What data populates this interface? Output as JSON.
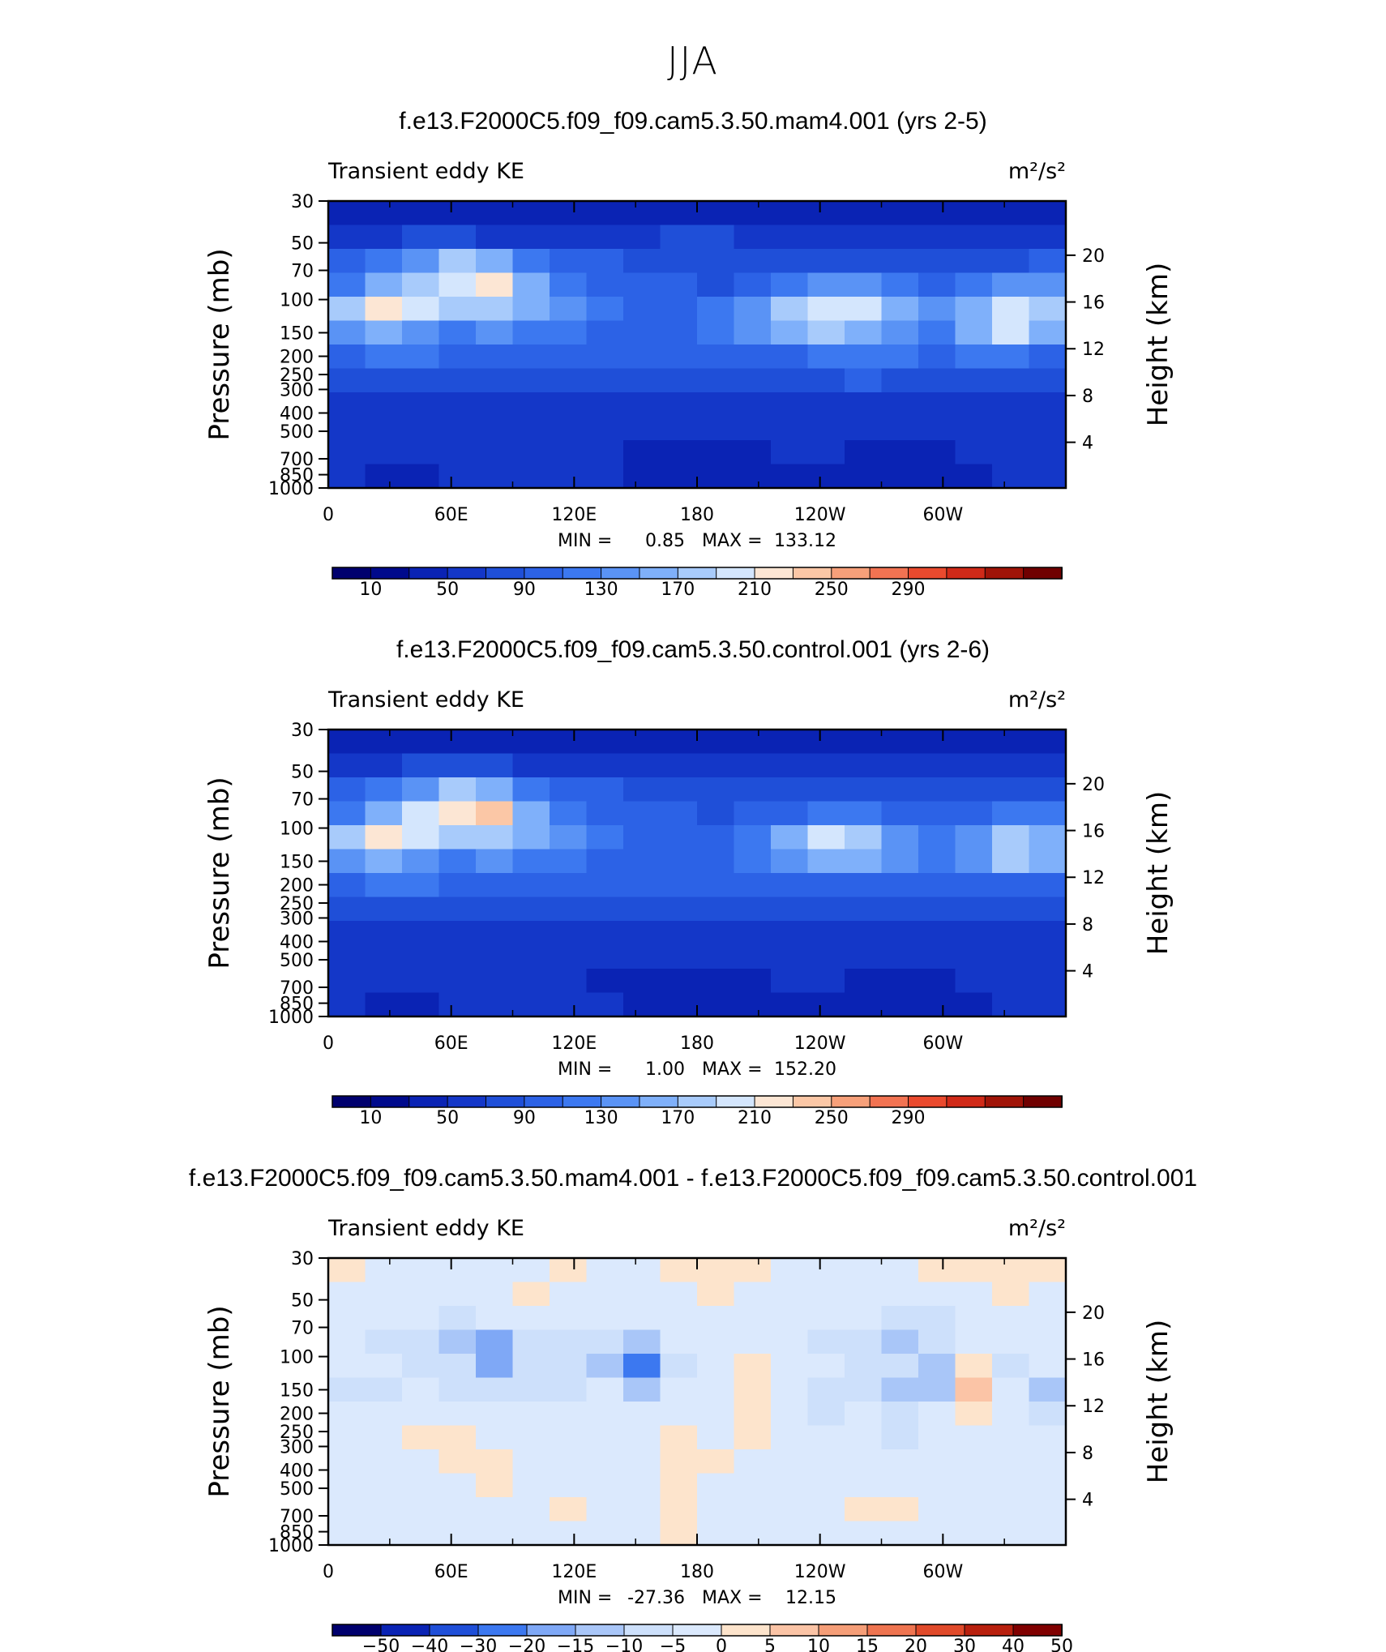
{
  "page_title": "JJA",
  "chart_data": [
    {
      "type": "heatmap",
      "title": "f.e13.F2000C5.f09_f09.cam5.3.50.mam4.001 (yrs 2-5)",
      "variable": "Transient eddy KE",
      "units": "m²/s²",
      "ylabel": "Pressure (mb)",
      "y2label": "Height (km)",
      "xticks": [
        "0",
        "60E",
        "120E",
        "180",
        "120W",
        "60W"
      ],
      "yticks": [
        "30",
        "50",
        "70",
        "100",
        "150",
        "200",
        "250",
        "300",
        "400",
        "500",
        "700",
        "850",
        "1000"
      ],
      "y2ticks": [
        "20",
        "16",
        "12",
        "8",
        "4"
      ],
      "stats": {
        "min_label": "MIN =",
        "min": "0.85",
        "max_label": "MAX =",
        "max": "133.12"
      },
      "colorbar": {
        "labels": [
          "10",
          "50",
          "90",
          "130",
          "170",
          "210",
          "250",
          "290"
        ]
      },
      "field": [
        [
          2,
          2,
          2,
          2,
          2,
          2,
          2,
          2,
          2,
          2,
          2,
          2,
          2,
          2,
          2,
          2,
          2,
          2,
          2,
          2
        ],
        [
          3,
          3,
          4,
          4,
          3,
          3,
          3,
          3,
          3,
          4,
          4,
          3,
          3,
          3,
          3,
          3,
          3,
          3,
          3,
          3
        ],
        [
          5,
          6,
          7,
          9,
          8,
          6,
          5,
          5,
          4,
          4,
          4,
          4,
          4,
          4,
          4,
          4,
          4,
          4,
          4,
          5
        ],
        [
          6,
          8,
          9,
          10,
          11,
          8,
          6,
          5,
          5,
          5,
          4,
          5,
          6,
          7,
          7,
          6,
          5,
          6,
          7,
          7
        ],
        [
          9,
          11,
          10,
          9,
          9,
          8,
          7,
          6,
          5,
          5,
          6,
          7,
          9,
          10,
          10,
          8,
          7,
          8,
          10,
          9
        ],
        [
          7,
          8,
          7,
          6,
          7,
          6,
          6,
          5,
          5,
          5,
          6,
          7,
          8,
          9,
          8,
          7,
          6,
          8,
          10,
          8
        ],
        [
          5,
          6,
          6,
          5,
          5,
          5,
          5,
          5,
          5,
          5,
          5,
          5,
          5,
          6,
          6,
          6,
          5,
          6,
          6,
          5
        ],
        [
          4,
          4,
          4,
          4,
          4,
          4,
          4,
          4,
          4,
          4,
          4,
          4,
          4,
          4,
          5,
          4,
          4,
          4,
          4,
          4
        ],
        [
          3,
          3,
          3,
          3,
          3,
          3,
          3,
          3,
          3,
          3,
          3,
          3,
          3,
          3,
          3,
          3,
          3,
          3,
          3,
          3
        ],
        [
          3,
          3,
          3,
          3,
          3,
          3,
          3,
          3,
          3,
          3,
          3,
          3,
          3,
          3,
          3,
          3,
          3,
          3,
          3,
          3
        ],
        [
          3,
          3,
          3,
          3,
          3,
          3,
          3,
          3,
          2,
          2,
          2,
          2,
          3,
          3,
          2,
          2,
          2,
          3,
          3,
          3
        ],
        [
          3,
          2,
          2,
          3,
          3,
          3,
          3,
          3,
          2,
          2,
          2,
          2,
          2,
          2,
          2,
          2,
          2,
          2,
          3,
          3
        ]
      ],
      "levels_color_index": "1=lowest blue bin"
    },
    {
      "type": "heatmap",
      "title": "f.e13.F2000C5.f09_f09.cam5.3.50.control.001 (yrs 2-6)",
      "variable": "Transient eddy KE",
      "units": "m²/s²",
      "ylabel": "Pressure (mb)",
      "y2label": "Height (km)",
      "xticks": [
        "0",
        "60E",
        "120E",
        "180",
        "120W",
        "60W"
      ],
      "yticks": [
        "30",
        "50",
        "70",
        "100",
        "150",
        "200",
        "250",
        "300",
        "400",
        "500",
        "700",
        "850",
        "1000"
      ],
      "y2ticks": [
        "20",
        "16",
        "12",
        "8",
        "4"
      ],
      "stats": {
        "min_label": "MIN =",
        "min": "1.00",
        "max_label": "MAX =",
        "max": "152.20"
      },
      "colorbar": {
        "labels": [
          "10",
          "50",
          "90",
          "130",
          "170",
          "210",
          "250",
          "290"
        ]
      },
      "field": [
        [
          2,
          2,
          2,
          2,
          2,
          2,
          2,
          2,
          2,
          2,
          2,
          2,
          2,
          2,
          2,
          2,
          2,
          2,
          2,
          2
        ],
        [
          3,
          3,
          4,
          4,
          4,
          3,
          3,
          3,
          3,
          3,
          3,
          3,
          3,
          3,
          3,
          3,
          3,
          3,
          3,
          3
        ],
        [
          5,
          6,
          7,
          9,
          8,
          6,
          5,
          5,
          4,
          4,
          4,
          4,
          4,
          4,
          4,
          4,
          4,
          4,
          4,
          4
        ],
        [
          6,
          8,
          10,
          11,
          12,
          8,
          6,
          5,
          5,
          5,
          4,
          5,
          5,
          6,
          6,
          5,
          5,
          5,
          6,
          6
        ],
        [
          9,
          11,
          10,
          9,
          9,
          8,
          7,
          6,
          5,
          5,
          5,
          6,
          8,
          10,
          9,
          7,
          6,
          7,
          9,
          8
        ],
        [
          7,
          8,
          7,
          6,
          7,
          6,
          6,
          5,
          5,
          5,
          5,
          6,
          7,
          8,
          8,
          7,
          6,
          7,
          9,
          8
        ],
        [
          5,
          6,
          6,
          5,
          5,
          5,
          5,
          5,
          5,
          5,
          5,
          5,
          5,
          5,
          5,
          5,
          5,
          5,
          5,
          5
        ],
        [
          4,
          4,
          4,
          4,
          4,
          4,
          4,
          4,
          4,
          4,
          4,
          4,
          4,
          4,
          4,
          4,
          4,
          4,
          4,
          4
        ],
        [
          3,
          3,
          3,
          3,
          3,
          3,
          3,
          3,
          3,
          3,
          3,
          3,
          3,
          3,
          3,
          3,
          3,
          3,
          3,
          3
        ],
        [
          3,
          3,
          3,
          3,
          3,
          3,
          3,
          3,
          3,
          3,
          3,
          3,
          3,
          3,
          3,
          3,
          3,
          3,
          3,
          3
        ],
        [
          3,
          3,
          3,
          3,
          3,
          3,
          3,
          2,
          2,
          2,
          2,
          2,
          3,
          3,
          2,
          2,
          2,
          3,
          3,
          3
        ],
        [
          3,
          2,
          2,
          3,
          3,
          3,
          3,
          3,
          2,
          2,
          2,
          2,
          2,
          2,
          2,
          2,
          2,
          2,
          3,
          3
        ]
      ]
    },
    {
      "type": "heatmap",
      "title": "f.e13.F2000C5.f09_f09.cam5.3.50.mam4.001 - f.e13.F2000C5.f09_f09.cam5.3.50.control.001",
      "variable": "Transient eddy KE",
      "units": "m²/s²",
      "ylabel": "Pressure (mb)",
      "y2label": "Height (km)",
      "xticks": [
        "0",
        "60E",
        "120E",
        "180",
        "120W",
        "60W"
      ],
      "yticks": [
        "30",
        "50",
        "70",
        "100",
        "150",
        "200",
        "250",
        "300",
        "400",
        "500",
        "700",
        "850",
        "1000"
      ],
      "y2ticks": [
        "20",
        "16",
        "12",
        "8",
        "4"
      ],
      "stats": {
        "min_label": "MIN =",
        "min": "-27.36",
        "max_label": "MAX =",
        "max": "12.15"
      },
      "colorbar": {
        "labels": [
          "−50",
          "−40",
          "−30",
          "−20",
          "−15",
          "−10",
          "−5",
          "0",
          "5",
          "10",
          "15",
          "20",
          "30",
          "40",
          "50"
        ]
      },
      "field": [
        [
          8,
          7,
          7,
          7,
          7,
          7,
          8,
          7,
          7,
          8,
          8,
          8,
          7,
          7,
          7,
          7,
          8,
          8,
          8,
          8
        ],
        [
          7,
          7,
          7,
          7,
          7,
          8,
          7,
          7,
          7,
          7,
          8,
          7,
          7,
          7,
          7,
          7,
          7,
          7,
          8,
          7
        ],
        [
          7,
          7,
          7,
          6,
          7,
          7,
          7,
          7,
          7,
          7,
          7,
          7,
          7,
          7,
          7,
          6,
          6,
          7,
          7,
          7
        ],
        [
          7,
          6,
          6,
          5,
          4,
          6,
          6,
          6,
          5,
          7,
          7,
          7,
          7,
          6,
          6,
          5,
          6,
          7,
          7,
          7
        ],
        [
          7,
          7,
          6,
          6,
          4,
          6,
          6,
          5,
          3,
          6,
          7,
          8,
          7,
          7,
          6,
          6,
          5,
          8,
          6,
          7
        ],
        [
          6,
          6,
          7,
          6,
          6,
          6,
          6,
          7,
          5,
          7,
          7,
          8,
          7,
          6,
          6,
          5,
          5,
          9,
          7,
          5
        ],
        [
          7,
          7,
          7,
          7,
          7,
          7,
          7,
          7,
          7,
          7,
          7,
          8,
          7,
          6,
          7,
          6,
          7,
          8,
          7,
          6
        ],
        [
          7,
          7,
          8,
          8,
          7,
          7,
          7,
          7,
          7,
          8,
          7,
          8,
          7,
          7,
          7,
          6,
          7,
          7,
          7,
          7
        ],
        [
          7,
          7,
          7,
          8,
          8,
          7,
          7,
          7,
          7,
          8,
          8,
          7,
          7,
          7,
          7,
          7,
          7,
          7,
          7,
          7
        ],
        [
          7,
          7,
          7,
          7,
          8,
          7,
          7,
          7,
          7,
          8,
          7,
          7,
          7,
          7,
          7,
          7,
          7,
          7,
          7,
          7
        ],
        [
          7,
          7,
          7,
          7,
          7,
          7,
          8,
          7,
          7,
          8,
          7,
          7,
          7,
          7,
          8,
          8,
          7,
          7,
          7,
          7
        ],
        [
          7,
          7,
          7,
          7,
          7,
          7,
          7,
          7,
          7,
          8,
          7,
          7,
          7,
          7,
          7,
          7,
          7,
          7,
          7,
          7
        ]
      ]
    }
  ],
  "colors": {
    "ke_palette": [
      "#00006e",
      "#000a8c",
      "#0a23b4",
      "#1437c8",
      "#1f4fd8",
      "#2c62e6",
      "#3c78f0",
      "#5a93f5",
      "#7fb0fa",
      "#a8cbfb",
      "#d4e6fd",
      "#fce6d4",
      "#fbc7a6",
      "#f7a07a",
      "#f27352",
      "#ea4a2e",
      "#d02a18",
      "#a01408",
      "#700000"
    ],
    "diff_palette": [
      "#00006e",
      "#0a23b4",
      "#1f4fd8",
      "#3c78f0",
      "#7fa8f6",
      "#a9c6f8",
      "#cde0fb",
      "#dbe9fd",
      "#fde4cc",
      "#fbc4a6",
      "#f59e78",
      "#ee7450",
      "#e04a2a",
      "#b8200e",
      "#800000"
    ]
  }
}
